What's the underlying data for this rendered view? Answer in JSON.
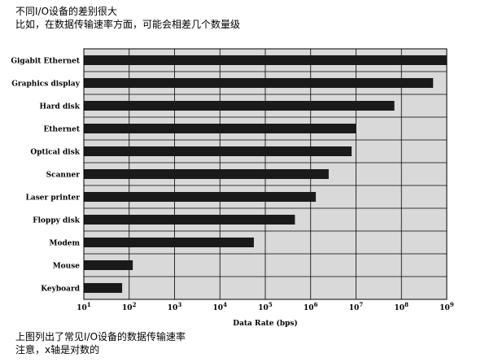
{
  "text": {
    "heading": "不同I/O设备的差别很大",
    "intro": "比如，在数据传输速率方面，可能会相差几个数量级",
    "caption": "上图列出了常见I/O设备的数据传输速率",
    "note": "注意，x轴是对数的"
  },
  "colors": {
    "plot_background": "#d9d9d9",
    "bar": "#1a1a1a",
    "grid": "#000000",
    "text": "#000000"
  },
  "chart_data": {
    "type": "bar",
    "orientation": "horizontal",
    "categories": [
      "Gigabit Ethernet",
      "Graphics display",
      "Hard disk",
      "Ethernet",
      "Optical disk",
      "Scanner",
      "Laser printer",
      "Floppy disk",
      "Modem",
      "Mouse",
      "Keyboard"
    ],
    "values": [
      1000000000,
      500000000,
      70000000,
      10000000,
      8000000,
      2500000,
      1300000,
      450000,
      56000,
      120,
      70
    ],
    "xlabel": "Data Rate (bps)",
    "ylabel": "",
    "xscale": "log",
    "xlim": [
      10,
      1000000000
    ],
    "tick_labels": [
      {
        "base": "10",
        "exp": "1"
      },
      {
        "base": "10",
        "exp": "2"
      },
      {
        "base": "10",
        "exp": "3"
      },
      {
        "base": "10",
        "exp": "4"
      },
      {
        "base": "10",
        "exp": "5"
      },
      {
        "base": "10",
        "exp": "6"
      },
      {
        "base": "10",
        "exp": "7"
      },
      {
        "base": "10",
        "exp": "8"
      },
      {
        "base": "10",
        "exp": "9"
      }
    ],
    "grid": true
  }
}
